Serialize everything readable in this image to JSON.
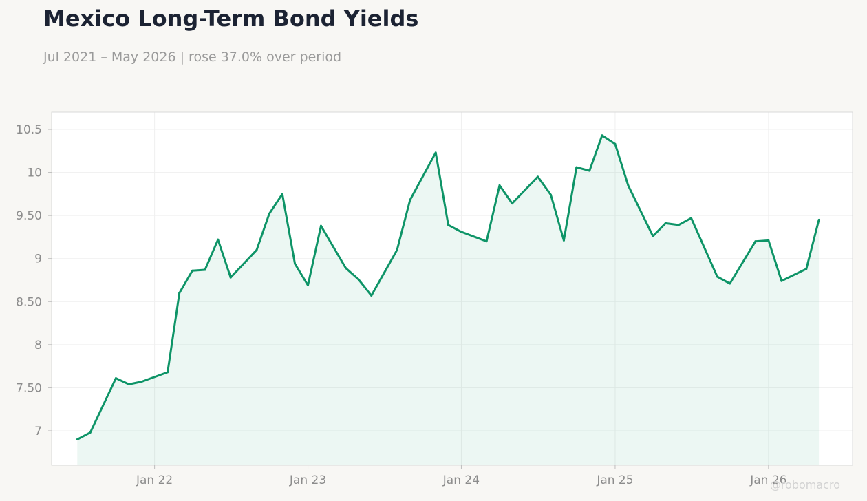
{
  "header": {
    "title": "Mexico Long-Term Bond Yields",
    "subtitle": "Jul 2021 – May 2026 | rose 37.0% over period"
  },
  "watermark": "@robomacro",
  "colors": {
    "line": "#0e9467",
    "fill": "#0e9467",
    "background": "#f8f7f4",
    "plot_background": "#ffffff",
    "grid": "#efefef",
    "frame": "#d9d9d9"
  },
  "chart_data": {
    "type": "area",
    "title": "Mexico Long-Term Bond Yields",
    "xlabel": "",
    "ylabel": "",
    "ylim": [
      6.6,
      10.7
    ],
    "grid": true,
    "y_ticks": [
      7,
      7.5,
      8,
      8.5,
      9,
      9.5,
      10,
      10.5
    ],
    "y_tick_labels": [
      "7",
      "7.50",
      "8",
      "8.50",
      "9",
      "9.50",
      "10",
      "10.5"
    ],
    "x_ticks": [
      "2022-01-01",
      "2023-01-01",
      "2024-01-01",
      "2025-01-01",
      "2026-01-01"
    ],
    "x_tick_labels": [
      "Jan 22",
      "Jan 23",
      "Jan 24",
      "Jan 25",
      "Jan 26"
    ],
    "xlim": [
      "2021-05-01",
      "2026-07-20"
    ],
    "series": [
      {
        "x": [
          "2021-07-01",
          "2021-08-01",
          "2021-10-01",
          "2021-11-01",
          "2021-12-01",
          "2022-02-01",
          "2022-03-01",
          "2022-04-01",
          "2022-05-01",
          "2022-06-01",
          "2022-07-01",
          "2022-09-01",
          "2022-10-01",
          "2022-11-01",
          "2022-12-01",
          "2023-01-01",
          "2023-02-01",
          "2023-04-01",
          "2023-05-01",
          "2023-06-01",
          "2023-08-01",
          "2023-09-01",
          "2023-11-01",
          "2023-12-01",
          "2024-01-01",
          "2024-03-01",
          "2024-04-01",
          "2024-05-01",
          "2024-07-01",
          "2024-08-01",
          "2024-09-01",
          "2024-10-01",
          "2024-11-01",
          "2024-12-01",
          "2025-01-01",
          "2025-02-01",
          "2025-04-01",
          "2025-05-01",
          "2025-06-01",
          "2025-07-01",
          "2025-09-01",
          "2025-10-01",
          "2025-12-01",
          "2026-01-01",
          "2026-02-01",
          "2026-04-01",
          "2026-05-01"
        ],
        "values": [
          6.9,
          6.98,
          7.61,
          7.54,
          7.57,
          7.68,
          8.6,
          8.86,
          8.87,
          9.22,
          8.78,
          9.1,
          9.52,
          9.75,
          8.94,
          8.69,
          9.38,
          8.89,
          8.76,
          8.57,
          9.1,
          9.68,
          10.23,
          9.39,
          9.31,
          9.2,
          9.85,
          9.64,
          9.95,
          9.74,
          9.21,
          10.06,
          10.02,
          10.43,
          10.33,
          9.85,
          9.26,
          9.41,
          9.39,
          9.47,
          8.79,
          8.71,
          9.2,
          9.21,
          8.74,
          8.88,
          9.45
        ]
      }
    ]
  }
}
